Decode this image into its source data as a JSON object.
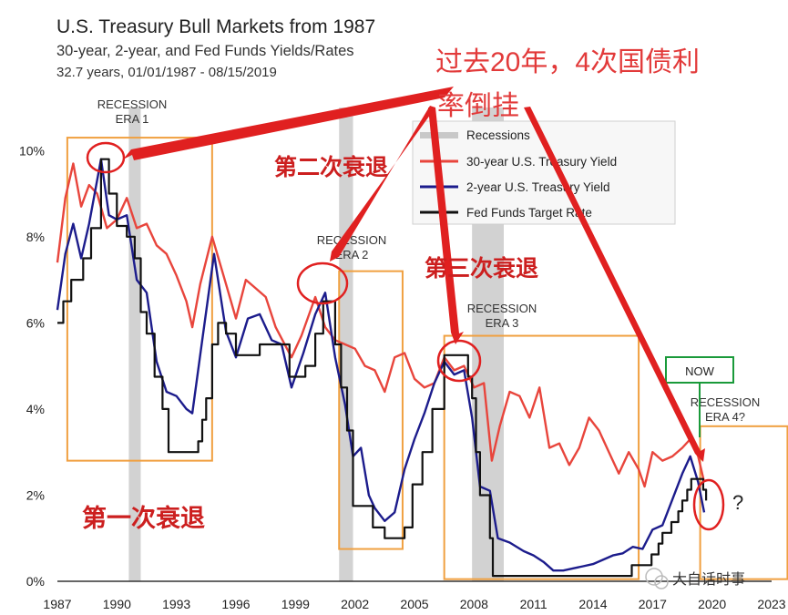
{
  "chart_data": {
    "type": "line",
    "title": "U.S. Treasury Bull Markets from 1987",
    "subtitle": "30-year, 2-year, and Fed Funds Yields/Rates",
    "subtitle2": "32.7 years, 01/01/1987 - 08/15/2019",
    "xlim": [
      1987,
      2023
    ],
    "ylim": [
      0,
      11
    ],
    "x_ticks": [
      1987,
      1990,
      1993,
      1996,
      1999,
      2002,
      2005,
      2008,
      2011,
      2014,
      2017,
      2020,
      2023
    ],
    "y_ticks": [
      {
        "value": 0,
        "label": "0%"
      },
      {
        "value": 2,
        "label": "2%"
      },
      {
        "value": 4,
        "label": "4%"
      },
      {
        "value": 6,
        "label": "6%"
      },
      {
        "value": 8,
        "label": "8%"
      },
      {
        "value": 10,
        "label": "10%"
      }
    ],
    "grid": false,
    "legend_position": "top-right",
    "legend": [
      {
        "name": "Recessions",
        "color": "#c8c8c8"
      },
      {
        "name": "30-year U.S. Treasury Yield",
        "color": "#e8453c"
      },
      {
        "name": "2-year U.S. Treasury Yield",
        "color": "#1c1c8c"
      },
      {
        "name": "Fed Funds Target Rate",
        "color": "#111111"
      }
    ],
    "recessions": [
      [
        1990.6,
        1991.2
      ],
      [
        2001.2,
        2001.9
      ],
      [
        2007.9,
        2009.5
      ]
    ],
    "series": [
      {
        "name": "30-year U.S. Treasury Yield",
        "color": "#e8453c",
        "x": [
          1987.0,
          1987.4,
          1987.8,
          1988.2,
          1988.6,
          1989.0,
          1989.5,
          1990.0,
          1990.5,
          1991.0,
          1991.5,
          1992.0,
          1992.5,
          1993.0,
          1993.5,
          1993.8,
          1994.2,
          1994.8,
          1995.5,
          1996.0,
          1996.5,
          1997.0,
          1997.5,
          1998.0,
          1998.8,
          1999.3,
          2000.0,
          2000.5,
          2001.0,
          2001.5,
          2002.0,
          2002.5,
          2003.0,
          2003.5,
          2004.0,
          2004.5,
          2005.0,
          2005.5,
          2006.0,
          2006.5,
          2007.0,
          2007.5,
          2008.0,
          2008.5,
          2008.9,
          2009.3,
          2009.8,
          2010.3,
          2010.8,
          2011.3,
          2011.8,
          2012.3,
          2012.8,
          2013.3,
          2013.8,
          2014.3,
          2014.8,
          2015.3,
          2015.8,
          2016.3,
          2016.6,
          2017.0,
          2017.5,
          2018.0,
          2018.5,
          2018.9,
          2019.3,
          2019.6
        ],
        "values": [
          7.4,
          8.9,
          9.7,
          8.7,
          9.2,
          9.0,
          8.2,
          8.4,
          8.9,
          8.2,
          8.3,
          7.8,
          7.6,
          7.1,
          6.5,
          5.9,
          6.9,
          8.0,
          6.9,
          6.1,
          7.0,
          6.8,
          6.6,
          5.9,
          5.2,
          5.7,
          6.6,
          5.9,
          5.6,
          5.5,
          5.4,
          5.0,
          4.9,
          4.4,
          5.2,
          5.3,
          4.7,
          4.5,
          4.6,
          5.2,
          4.9,
          5.0,
          4.5,
          4.6,
          2.8,
          3.6,
          4.4,
          4.3,
          3.8,
          4.5,
          3.1,
          3.2,
          2.7,
          3.1,
          3.8,
          3.5,
          3.0,
          2.5,
          3.0,
          2.6,
          2.2,
          3.0,
          2.8,
          2.9,
          3.1,
          3.3,
          2.9,
          2.3
        ]
      },
      {
        "name": "2-year U.S. Treasury Yield",
        "color": "#1c1c8c",
        "x": [
          1987.0,
          1987.4,
          1987.8,
          1988.2,
          1988.6,
          1989.2,
          1989.6,
          1990.0,
          1990.5,
          1991.0,
          1991.5,
          1992.0,
          1992.5,
          1993.0,
          1993.5,
          1993.8,
          1994.3,
          1994.9,
          1995.5,
          1996.0,
          1996.6,
          1997.2,
          1997.8,
          1998.3,
          1998.8,
          1999.4,
          2000.0,
          2000.5,
          2001.0,
          2001.5,
          2001.9,
          2002.3,
          2002.7,
          2003.0,
          2003.5,
          2004.0,
          2004.5,
          2005.0,
          2005.5,
          2006.0,
          2006.5,
          2007.0,
          2007.5,
          2007.9,
          2008.3,
          2008.8,
          2009.2,
          2009.8,
          2010.5,
          2011.0,
          2011.5,
          2012.0,
          2012.5,
          2013.0,
          2013.5,
          2014.0,
          2014.5,
          2015.0,
          2015.5,
          2016.0,
          2016.5,
          2017.0,
          2017.5,
          2018.0,
          2018.5,
          2018.9,
          2019.3,
          2019.6
        ],
        "values": [
          6.3,
          7.6,
          8.3,
          7.5,
          8.3,
          9.8,
          8.5,
          8.4,
          8.5,
          7.0,
          6.7,
          5.1,
          4.4,
          4.3,
          4.0,
          3.9,
          5.6,
          7.6,
          5.8,
          5.2,
          6.1,
          6.2,
          5.6,
          5.5,
          4.5,
          5.3,
          6.2,
          6.7,
          5.2,
          4.1,
          2.9,
          3.1,
          2.0,
          1.7,
          1.4,
          1.6,
          2.6,
          3.3,
          3.9,
          4.6,
          5.1,
          4.8,
          4.9,
          3.8,
          2.2,
          2.1,
          1.0,
          0.9,
          0.7,
          0.6,
          0.45,
          0.25,
          0.25,
          0.3,
          0.35,
          0.4,
          0.5,
          0.6,
          0.65,
          0.8,
          0.75,
          1.2,
          1.3,
          1.9,
          2.5,
          2.9,
          2.3,
          1.6
        ]
      },
      {
        "name": "Fed Funds Target Rate",
        "color": "#111111",
        "step": true,
        "x": [
          1987.0,
          1987.3,
          1987.7,
          1988.3,
          1988.7,
          1989.2,
          1989.6,
          1990.0,
          1990.5,
          1990.9,
          1991.2,
          1991.5,
          1991.9,
          1992.3,
          1992.6,
          1994.1,
          1994.3,
          1994.5,
          1994.8,
          1995.1,
          1995.5,
          1996.0,
          1997.2,
          1998.7,
          1999.5,
          2000.0,
          2000.4,
          2001.0,
          2001.3,
          2001.6,
          2001.9,
          2002.9,
          2003.5,
          2004.5,
          2004.9,
          2005.4,
          2005.9,
          2006.5,
          2007.7,
          2007.9,
          2008.1,
          2008.3,
          2008.8,
          2008.95,
          2015.95,
          2016.95,
          2017.3,
          2017.5,
          2017.95,
          2018.3,
          2018.5,
          2018.75,
          2018.95,
          2019.55,
          2019.7
        ],
        "values": [
          6.0,
          6.5,
          7.0,
          7.5,
          8.2,
          9.8,
          9.0,
          8.25,
          8.0,
          7.5,
          6.25,
          5.75,
          4.75,
          4.0,
          3.0,
          3.25,
          3.75,
          4.25,
          5.5,
          6.0,
          5.75,
          5.25,
          5.5,
          4.75,
          5.0,
          5.75,
          6.5,
          5.5,
          4.5,
          3.5,
          1.75,
          1.25,
          1.0,
          1.25,
          2.25,
          3.0,
          4.0,
          5.25,
          4.75,
          4.25,
          3.0,
          2.0,
          1.0,
          0.125,
          0.375,
          0.625,
          0.875,
          1.125,
          1.375,
          1.625,
          1.875,
          2.125,
          2.375,
          2.125,
          1.875
        ]
      }
    ]
  },
  "labels": {
    "era1": [
      "RECESSION",
      "ERA 1"
    ],
    "era2": [
      "RECESSION",
      "ERA 2"
    ],
    "era3": [
      "RECESSION",
      "ERA 3"
    ],
    "era4": [
      "RECESSION",
      "ERA 4?"
    ],
    "now": "NOW",
    "question": "?",
    "cn_top_line1": "过去20年，4次国债利",
    "cn_top_line2": "率倒挂",
    "cn_first": "第一次衰退",
    "cn_second": "第二次衰退",
    "cn_third": "第三次衰退",
    "watermark": "大自话时事"
  }
}
